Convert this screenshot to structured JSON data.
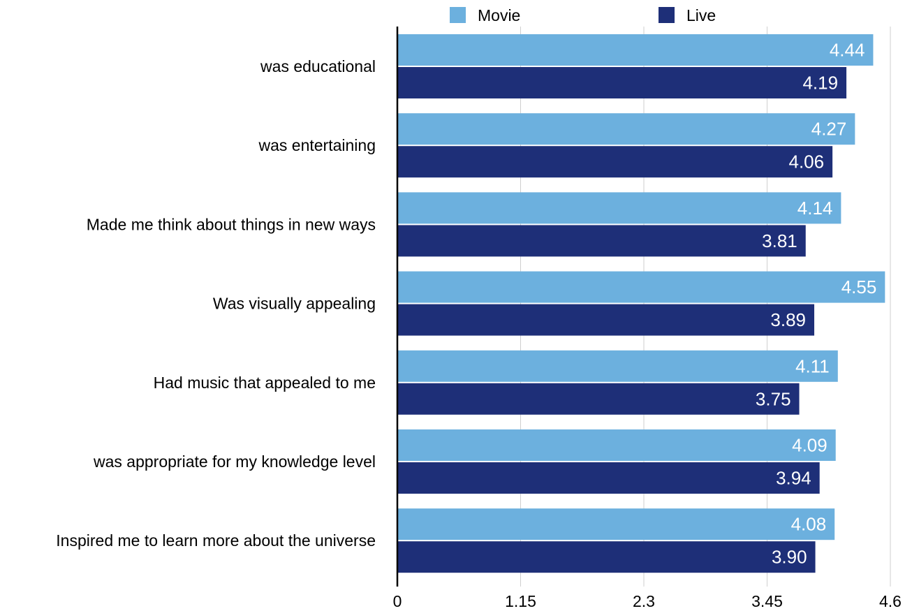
{
  "chart_data": {
    "type": "bar",
    "orientation": "horizontal",
    "categories": [
      "was educational",
      "was entertaining",
      "Made me think about things in new ways",
      "Was visually appealing",
      "Had music that appealed to me",
      "was appropriate for my knowledge level",
      "Inspired me to learn more about the universe"
    ],
    "series": [
      {
        "name": "Movie",
        "color": "#6CB0DE",
        "values": [
          4.44,
          4.27,
          4.14,
          4.55,
          4.11,
          4.09,
          4.08
        ],
        "labels": [
          "4.44",
          "4.27",
          "4.14",
          "4.55",
          "4.11",
          "4.09",
          "4.08"
        ]
      },
      {
        "name": "Live",
        "color": "#1E2F78",
        "values": [
          4.19,
          4.06,
          3.81,
          3.89,
          3.75,
          3.94,
          3.9
        ],
        "labels": [
          "4.19",
          "4.06",
          "3.81",
          "3.89",
          "3.75",
          "3.94",
          "3.90"
        ]
      }
    ],
    "xlim": [
      0,
      4.6
    ],
    "xticks": [
      0,
      1.15,
      2.3,
      3.45,
      4.6
    ],
    "xtick_labels": [
      "0",
      "1.15",
      "2.3",
      "3.45",
      "4.6"
    ],
    "grid": true,
    "legend_position": "top"
  }
}
